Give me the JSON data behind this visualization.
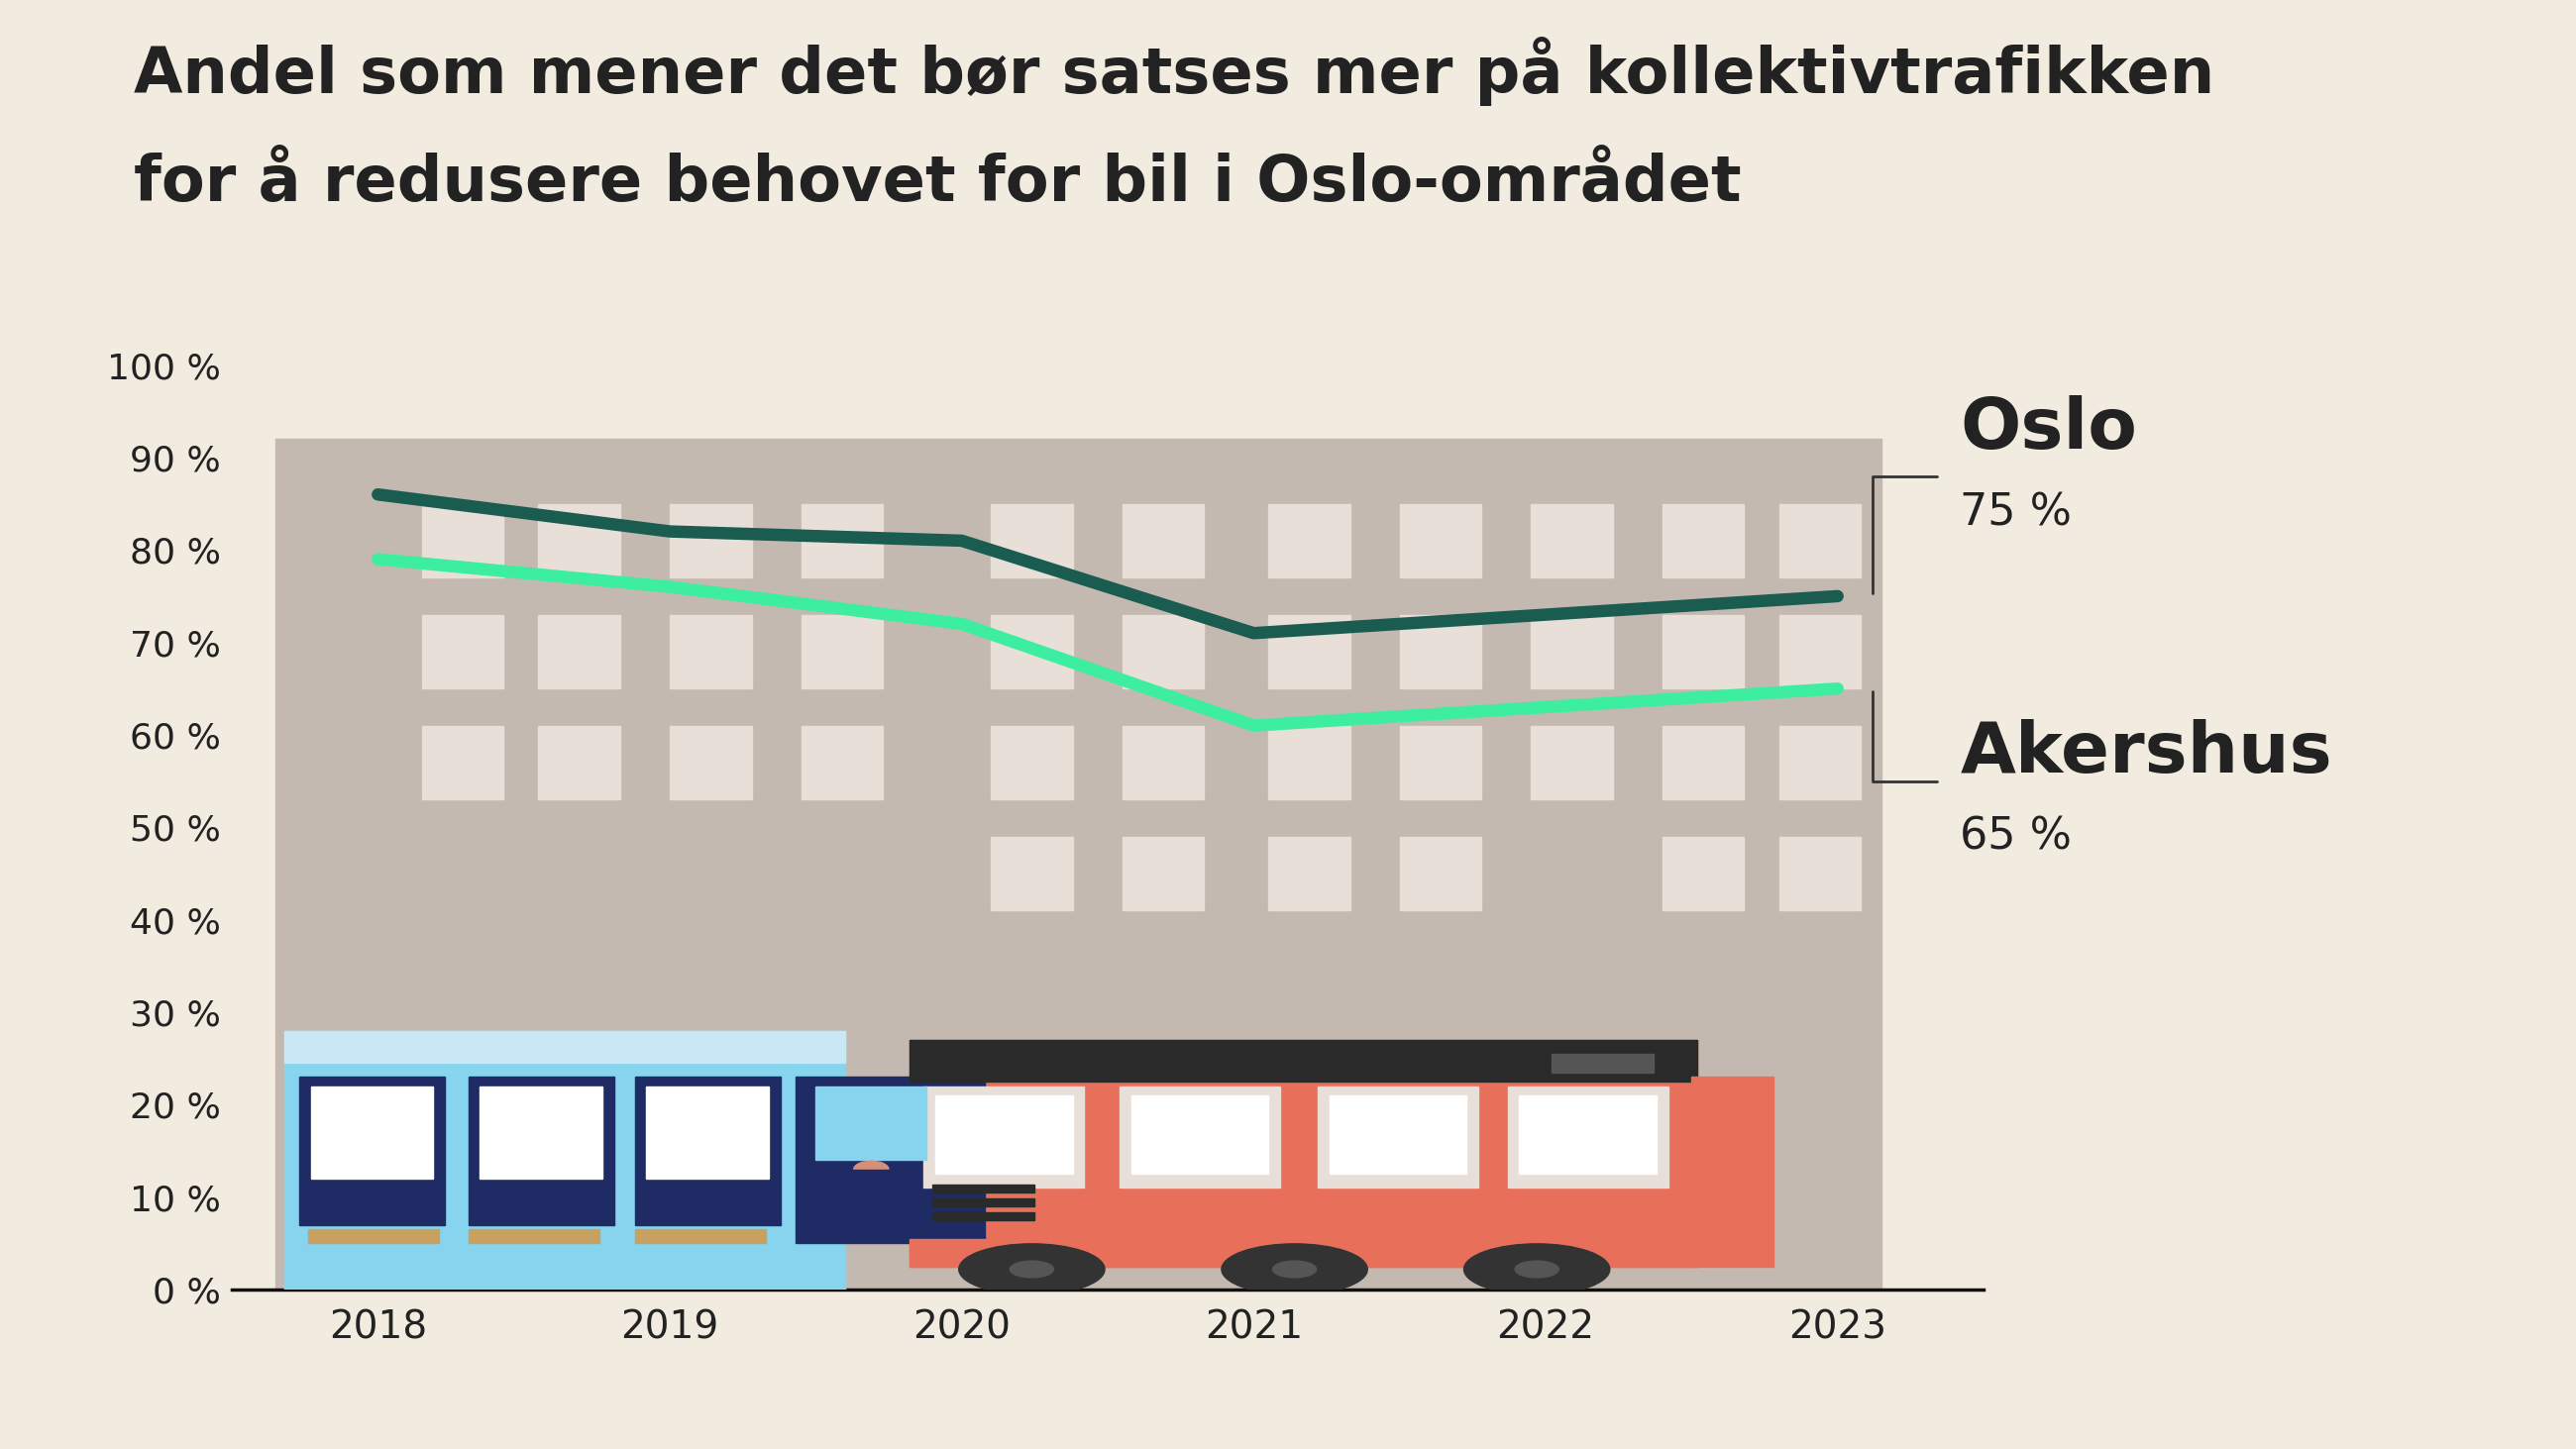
{
  "title_line1": "Andel som mener det bør satses mer på kollektivtrafikken",
  "title_line2": "for å redusere behovet for bil i Oslo-området",
  "background_color": "#f2ece0",
  "years": [
    2018,
    2019,
    2020,
    2021,
    2022,
    2023
  ],
  "oslo_values": [
    86,
    82,
    81,
    71,
    73,
    75
  ],
  "akershus_values": [
    79,
    76,
    72,
    61,
    63,
    65
  ],
  "oslo_color": "#1b5c50",
  "akershus_color": "#3deea0",
  "oslo_label": "Oslo",
  "oslo_pct": "75 %",
  "akershus_label": "Akershus",
  "akershus_pct": "65 %",
  "building_color": "#c4b9b0",
  "window_color": "#e8e0d8",
  "tram_body_color": "#87d4ee",
  "tram_dark_color": "#1e2b65",
  "bus_body_color": "#e8705a",
  "bus_dark_color": "#2a2a2a",
  "bus_wheel_color": "#333333",
  "ytick_labels": [
    "0 %",
    "10 %",
    "20 %",
    "30 %",
    "40 %",
    "50 %",
    "60 %",
    "70 %",
    "80 %",
    "90 %",
    "100 %"
  ],
  "line_width": 9,
  "leader_color": "#333333",
  "text_color": "#222222"
}
